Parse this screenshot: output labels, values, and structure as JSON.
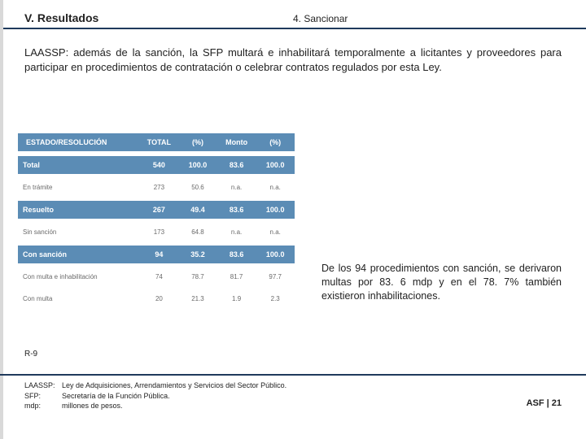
{
  "header": {
    "left": "V. Resultados",
    "right": "4. Sancionar"
  },
  "paragraph": "LAASSP: además de la sanción, la SFP multará e inhabilitará temporalmente a licitantes y proveedores para participar en procedimientos de contratación o celebrar contratos regulados por esta Ley.",
  "table": {
    "headers": [
      "ESTADO/RESOLUCIÓN",
      "TOTAL",
      "(%)",
      "Monto",
      "(%)"
    ],
    "rows": [
      {
        "kind": "bold",
        "cells": [
          "Total",
          "540",
          "100.0",
          "83.6",
          "100.0"
        ]
      },
      {
        "kind": "data",
        "cells": [
          "En trámite",
          "273",
          "50.6",
          "n.a.",
          "n.a."
        ]
      },
      {
        "kind": "bold",
        "cells": [
          "Resuelto",
          "267",
          "49.4",
          "83.6",
          "100.0"
        ]
      },
      {
        "kind": "data",
        "cells": [
          "Sin sanción",
          "173",
          "64.8",
          "n.a.",
          "n.a."
        ]
      },
      {
        "kind": "bold",
        "cells": [
          "Con sanción",
          "94",
          "35.2",
          "83.6",
          "100.0"
        ]
      },
      {
        "kind": "data",
        "cells": [
          "Con multa e inhabilitación",
          "74",
          "78.7",
          "81.7",
          "97.7"
        ]
      },
      {
        "kind": "data",
        "cells": [
          "Con multa",
          "20",
          "21.3",
          "1.9",
          "2.3"
        ]
      }
    ],
    "col_widths": [
      "44%",
      "14%",
      "14%",
      "14%",
      "14%"
    ],
    "header_bg": "#5b8cb5",
    "header_fg": "#ffffff",
    "data_fg": "#6a6a6a"
  },
  "callout": "De los 94 procedimientos con sanción, se derivaron multas por 83. 6 mdp y en el 78. 7% también existieron inhabilitaciones.",
  "ref_code": "R-9",
  "footnotes": {
    "defs": [
      {
        "key": "LAASSP:",
        "val": "Ley de Adquisiciones, Arrendamientos y Servicios del Sector Público."
      },
      {
        "key": "SFP:",
        "val": "Secretaría de la Función Pública."
      },
      {
        "key": "mdp:",
        "val": "millones de pesos."
      }
    ],
    "slide_num": "ASF | 21"
  },
  "colors": {
    "rule": "#1f3a5c",
    "background": "#ffffff"
  }
}
